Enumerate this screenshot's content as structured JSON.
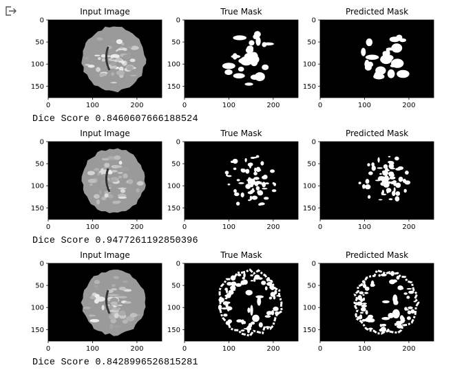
{
  "output_icon": "output-arrow-icon",
  "colors": {
    "axes_background": "#000000",
    "mask_foreground": "#ffffff",
    "text": "#000000"
  },
  "results": [
    {
      "panels": [
        {
          "title": "Input Image",
          "kind": "mri"
        },
        {
          "title": "True Mask",
          "kind": "mask-coarse"
        },
        {
          "title": "Predicted Mask",
          "kind": "mask-pred"
        }
      ],
      "dice_label": "Dice Score",
      "dice_value": "0.8460607666188524"
    },
    {
      "panels": [
        {
          "title": "Input Image",
          "kind": "mri"
        },
        {
          "title": "True Mask",
          "kind": "mask-fine"
        },
        {
          "title": "Predicted Mask",
          "kind": "mask-fine"
        }
      ],
      "dice_label": "Dice Score",
      "dice_value": "0.9477261192850396"
    },
    {
      "panels": [
        {
          "title": "Input Image",
          "kind": "mri"
        },
        {
          "title": "True Mask",
          "kind": "mask-outline"
        },
        {
          "title": "Predicted Mask",
          "kind": "mask-outline"
        }
      ],
      "dice_label": "Dice Score",
      "dice_value": "0.8428996526815281"
    }
  ],
  "axes": {
    "x_ticks": [
      "0",
      "100",
      "200"
    ],
    "x_tick_values": [
      0,
      100,
      200
    ],
    "x_max": 256,
    "y_ticks": [
      "0",
      "50",
      "100",
      "150"
    ],
    "y_tick_values": [
      0,
      50,
      100,
      150
    ],
    "y_max": 176
  }
}
